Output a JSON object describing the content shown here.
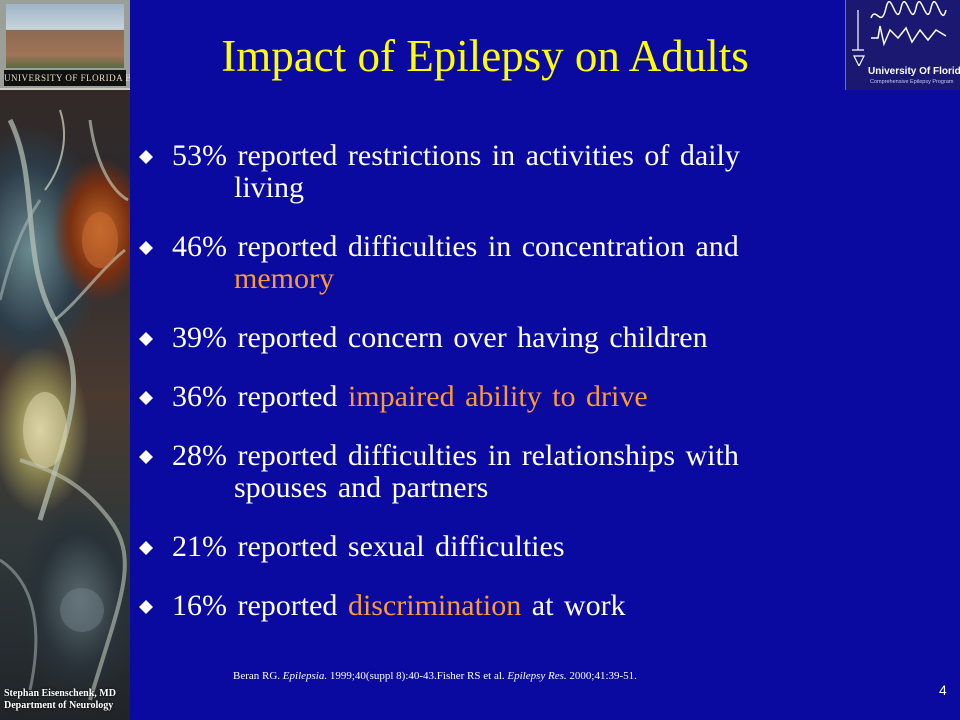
{
  "slide": {
    "title": "Impact of Epilepsy on Adults",
    "page_number": "4",
    "colors": {
      "background": "#0a0aa0",
      "title": "#ffff00",
      "text": "#ffffff",
      "highlight": "#ff9933"
    }
  },
  "header": {
    "left_logo_text": "UNIVERSITY OF FLORIDA BRAIN INSTITUTE",
    "right_logo_name": "University Of Florida",
    "right_logo_subtitle": "Comprehensive Epilepsy Program"
  },
  "bullets": [
    {
      "pre": "53% reported restrictions in activities of daily",
      "cont": "living",
      "hl": "",
      "post": ""
    },
    {
      "pre": "46% reported difficulties in concentration and",
      "cont": "",
      "hl": "memory",
      "post": ""
    },
    {
      "pre": "39% reported concern over having children",
      "cont": "",
      "hl": "",
      "post": ""
    },
    {
      "pre": "36% reported ",
      "cont": "",
      "hl": "impaired ability to drive",
      "post": ""
    },
    {
      "pre": "28% reported difficulties in relationships with",
      "cont": "spouses and partners",
      "hl": "",
      "post": ""
    },
    {
      "pre": "21% reported sexual difficulties",
      "cont": "",
      "hl": "",
      "post": ""
    },
    {
      "pre": "16% reported ",
      "cont": "",
      "hl": "discrimination",
      "post": " at work"
    }
  ],
  "citation": {
    "part1": "Beran RG. ",
    "journal1": "Epilepsia.",
    "part2": " 1999;40(suppl 8):40-43.Fisher RS et al. ",
    "journal2": "Epilepsy Res.",
    "part3": " 2000;41:39-51."
  },
  "footer": {
    "author_line1": "Stephan Eisenschenk, MD",
    "author_line2": "Department of Neurology"
  },
  "icons": {
    "bullet": "diamond-bullet-icon"
  }
}
